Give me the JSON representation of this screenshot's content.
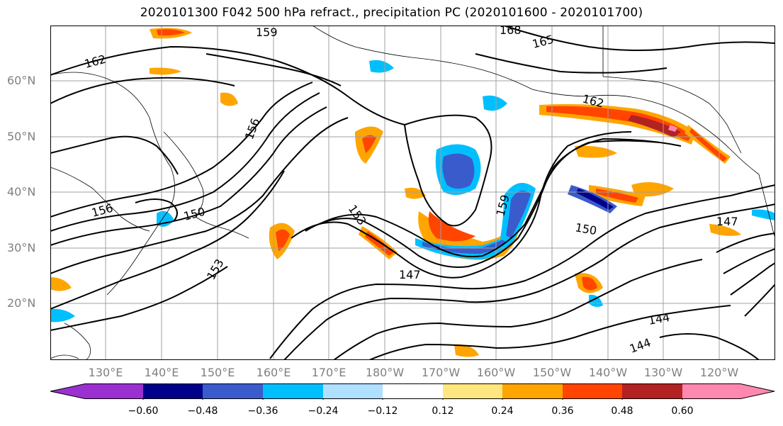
{
  "title": "2020101300 F042 500 hPa refract., precipitation PC (2020101600 - 2020101700)",
  "lat_labels": [
    "60°N",
    "50°N",
    "40°N",
    "30°N",
    "20°N"
  ],
  "lon_labels": [
    "130°E",
    "140°E",
    "150°E",
    "160°E",
    "170°E",
    "180°W",
    "170°W",
    "160°W",
    "150°W",
    "140°W",
    "130°W",
    "120°W"
  ],
  "contour_labels": [
    "168",
    "165",
    "162",
    "159",
    "156",
    "153",
    "150",
    "147",
    "144",
    "162",
    "159",
    "156",
    "153",
    "150",
    "147",
    "144"
  ],
  "colorbar": {
    "ticks": [
      "−0.60",
      "−0.48",
      "−0.36",
      "−0.24",
      "−0.12",
      "0.12",
      "0.24",
      "0.36",
      "0.48",
      "0.60"
    ],
    "colors": [
      "#9b30d0",
      "#00008b",
      "#3a5bcc",
      "#00bfff",
      "#b0e0ff",
      "#ffffff",
      "#ffe680",
      "#ffa500",
      "#ff4500",
      "#b22222",
      "#ff88b0"
    ]
  }
}
